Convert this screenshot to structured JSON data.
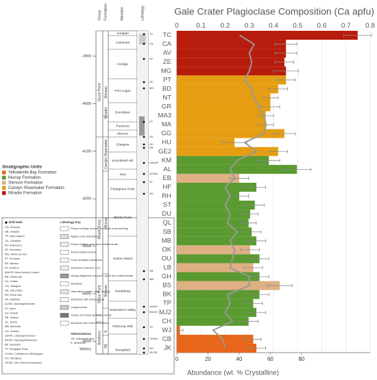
{
  "chart_data": {
    "type": "bar",
    "title": "Gale Crater Plagioclase Composition (Ca apfu)",
    "x_label": "Abundance (wt. % Crystalline)",
    "categories": [
      "TC",
      "CA",
      "AV",
      "ZE",
      "MG",
      "PT",
      "BD",
      "NT",
      "GR",
      "MA3",
      "MA",
      "GG",
      "HU",
      "GE2",
      "KM",
      "AL",
      "EB",
      "HF",
      "RH",
      "ST",
      "DU",
      "QL",
      "SB",
      "MB",
      "OK",
      "OU",
      "LB",
      "GH",
      "BS",
      "BK",
      "TP",
      "MJ2",
      "CH",
      "WJ",
      "CB",
      "JK"
    ],
    "values": [
      116,
      70,
      70,
      69,
      70,
      70,
      65,
      60,
      60,
      57,
      57,
      69,
      37,
      65,
      59,
      77,
      40,
      51,
      40,
      50,
      47,
      46,
      48,
      51,
      47,
      53,
      49,
      53,
      66,
      53,
      49,
      51,
      46,
      2,
      49,
      51
    ],
    "errors": [
      9,
      7,
      7,
      6,
      8,
      6,
      6,
      5,
      6,
      5,
      5,
      7,
      8,
      6,
      7,
      9,
      6,
      6,
      6,
      6,
      5,
      5,
      6,
      6,
      6,
      6,
      6,
      6,
      8,
      6,
      6,
      6,
      6,
      2,
      5,
      6
    ],
    "colors": [
      "#b81c0c",
      "#b81c0c",
      "#b81c0c",
      "#b81c0c",
      "#b81c0c",
      "#e59e12",
      "#e59e12",
      "#e59e12",
      "#e59e12",
      "#e59e12",
      "#e59e12",
      "#e59e12",
      "#e59e12",
      "#e59e12",
      "#5b9a31",
      "#5b9a31",
      "#deb083",
      "#5b9a31",
      "#5b9a31",
      "#5b9a31",
      "#5b9a31",
      "#5b9a31",
      "#5b9a31",
      "#5b9a31",
      "#deb083",
      "#5b9a31",
      "#deb083",
      "#5b9a31",
      "#deb083",
      "#5b9a31",
      "#5b9a31",
      "#5b9a31",
      "#5b9a31",
      "#e8661a",
      "#e8661a",
      "#e8661a"
    ],
    "xlim": [
      0,
      124
    ],
    "xticks": [
      0,
      20,
      40,
      60,
      80
    ],
    "x2lim": [
      0,
      0.8
    ],
    "x2ticks": [
      0,
      0.1,
      0.2,
      0.3,
      0.4,
      0.5,
      0.6,
      0.7,
      0.8
    ],
    "line_values": [
      0.26,
      0.32,
      0.3,
      0.31,
      0.3,
      0.28,
      0.31,
      0.32,
      0.34,
      0.36,
      0.37,
      0.36,
      0.28,
      0.33,
      0.25,
      0.22,
      0.24,
      0.2,
      0.22,
      0.2,
      0.22,
      0.21,
      0.25,
      0.22,
      0.24,
      0.23,
      0.22,
      0.3,
      0.3,
      0.21,
      0.22,
      0.2,
      0.23,
      0.15,
      0.19,
      0.2
    ],
    "line_color": "#999999"
  },
  "column": {
    "headers": [
      "Group",
      "Formation",
      "Member",
      "Lithology"
    ],
    "depth_ticks": [
      -3900,
      -4000,
      -4100,
      -4200,
      -4300,
      -4400,
      -4500
    ],
    "depth_unit": "Meters",
    "groups": [
      "Siccar Point",
      "Mount Sharp",
      "Siccar Point",
      "Bradbury"
    ],
    "formations": [
      "Stimson",
      "Mirador",
      "Carolyn Shoemaker",
      "Murray",
      "Stimson",
      "K",
      "YB"
    ],
    "members": [
      "Amapari",
      "Catrimani",
      "Contigo",
      "Port Logan",
      "Dunnideer",
      "Pontours",
      "Mercou",
      "Glasgow",
      "Knockfarril Hill",
      "Jura",
      "Pettegrove Point",
      "Blunts Point",
      "Sutton Island",
      "Karasburg",
      "Hartmann's Valley",
      "Pahrump Hills",
      "Sheepbed"
    ],
    "samples": [
      "TC",
      "CA",
      "AV",
      "ZE",
      "MG",
      "PT",
      "GE",
      "HU",
      "EB",
      "KM/GR",
      "AL/MA",
      "ST",
      "DU",
      "SB",
      "MB",
      "LB/OK",
      "BS/GH",
      "TP",
      "CH/MJ",
      "WJ",
      "JK/CB"
    ]
  },
  "units_legend": {
    "title": "Stratigraphic Units",
    "items": [
      {
        "name": "Yellowknife Bay Formation",
        "color": "#e8661a"
      },
      {
        "name": "Murray Formation",
        "color": "#5b9a31"
      },
      {
        "name": "Stimson Formation",
        "color": "#deb083"
      },
      {
        "name": "Carolyn Shoemaker Formation",
        "color": "#e59e12"
      },
      {
        "name": "Mirador Formation",
        "color": "#b81c0c"
      }
    ]
  },
  "key": {
    "drill_title": "Drill Hole",
    "drill_holes": [
      "SQ, Sequoia",
      "UB, Ubajara",
      "TP, Tapo Caparo",
      "CA, Canaima",
      "AV, Avanavero",
      "ZE, Zechstein",
      "MG, Maria Gordon",
      "PT, Pontours",
      "BD, Bardou",
      "NT, Nontron",
      "MA/GR, Mary Anning Groken",
      "EB, Edinburgh",
      "HU, Hutton",
      "GG, Glasgow",
      "GE, Glen Etive",
      "RH, Rock Hall",
      "HF, Highfield",
      "AL/KM, Aberlady/Kilmarie",
      "ST, Stoer",
      "DU, Duluth",
      "SB, Sebina",
      "QL, Quela",
      "MB, Marimba",
      "OU, Oudam",
      "LB/OK, Lubango/Okoruso",
      "BS/GH, Big Sky/Greenhorn",
      "BK, Buckskin",
      "TP, Telegraph Peak",
      "CH/MJ, Confidence Hills/Mojave",
      "WJ, Windjana",
      "JK/CB, John Klein/Cumberland"
    ],
    "litho_title": "Lithology Key",
    "litho": [
      "Planar bedding, scours, low-angle cross bedding",
      "Ripple cross-lamination",
      "Planar-bedded, grain size indeterminate",
      "Thinly-bedded lenses",
      "Cross-stratified Sandstone",
      "Sandstone (Stimson Fm)",
      "Strong diagenetic overprint - grain size indeterminate",
      "Mudstone",
      "Heterolithic mudst., sdst., and cgl.",
      "Sandstone (Mt Sharp group)",
      "Conglomerate",
      "Thickly and thinly laminated mudst.",
      "Mudstone with Faint laminations"
    ],
    "abbr_title": "Abbreviations",
    "abbr": [
      "YB: Yellowknife Bay",
      "K: Kimberley"
    ]
  }
}
